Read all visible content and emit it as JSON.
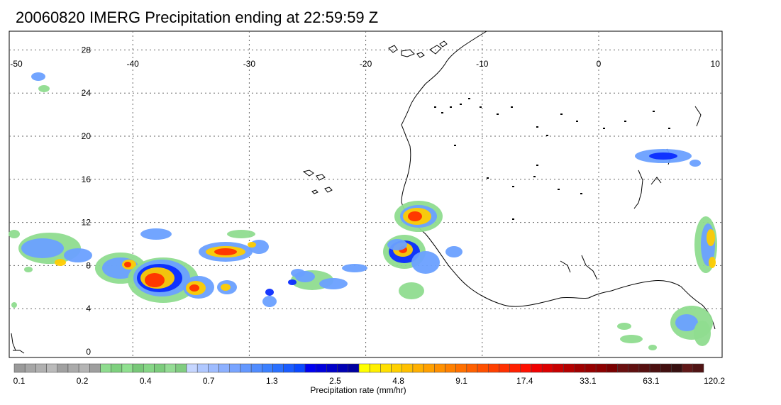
{
  "title": "20060820 IMERG Precipitation ending at 22:59:59 Z",
  "map": {
    "lon_ticks": [
      "-50",
      "-40",
      "-30",
      "-20",
      "-10",
      "0",
      "10"
    ],
    "lat_ticks": [
      "28",
      "24",
      "20",
      "16",
      "12",
      "8",
      "4",
      "0"
    ],
    "lon_range": [
      -50,
      10
    ],
    "lat_range": [
      -1,
      31
    ],
    "grid": "dotted"
  },
  "colorbar": {
    "title": "Precipitation rate (mm/hr)",
    "tick_labels": [
      "0.1",
      "0.2",
      "0.4",
      "0.7",
      "1.3",
      "2.5",
      "4.8",
      "9.1",
      "17.4",
      "33.1",
      "63.1",
      "120.2"
    ],
    "colors": [
      "#9a9a9a",
      "#a6a6a6",
      "#b0b0b0",
      "#bababa",
      "#a0a0a0",
      "#aaaaaa",
      "#b4b4b4",
      "#9e9e9e",
      "#8fdc8f",
      "#7ed07e",
      "#90e090",
      "#78c878",
      "#86d686",
      "#7ccc7c",
      "#94dc94",
      "#80cc80",
      "#c6d6ff",
      "#b0c8ff",
      "#9ebcff",
      "#8cb0ff",
      "#78a4ff",
      "#6498ff",
      "#508cff",
      "#3c80ff",
      "#2a70ff",
      "#1a5cff",
      "#0a48ff",
      "#0000f0",
      "#0000dc",
      "#0000c8",
      "#0000b4",
      "#0000a0",
      "#ffff00",
      "#fff000",
      "#ffe000",
      "#ffd000",
      "#ffc000",
      "#ffb000",
      "#ffa000",
      "#ff9000",
      "#ff8000",
      "#ff7000",
      "#ff6000",
      "#ff5000",
      "#ff4000",
      "#ff3000",
      "#ff2000",
      "#ff1000",
      "#f00000",
      "#dc0000",
      "#c80000",
      "#b40000",
      "#a00000",
      "#960000",
      "#8c0000",
      "#7a0000",
      "#6a1010",
      "#601010",
      "#561010",
      "#4c1010",
      "#421010",
      "#381010",
      "#601818",
      "#501414"
    ]
  }
}
